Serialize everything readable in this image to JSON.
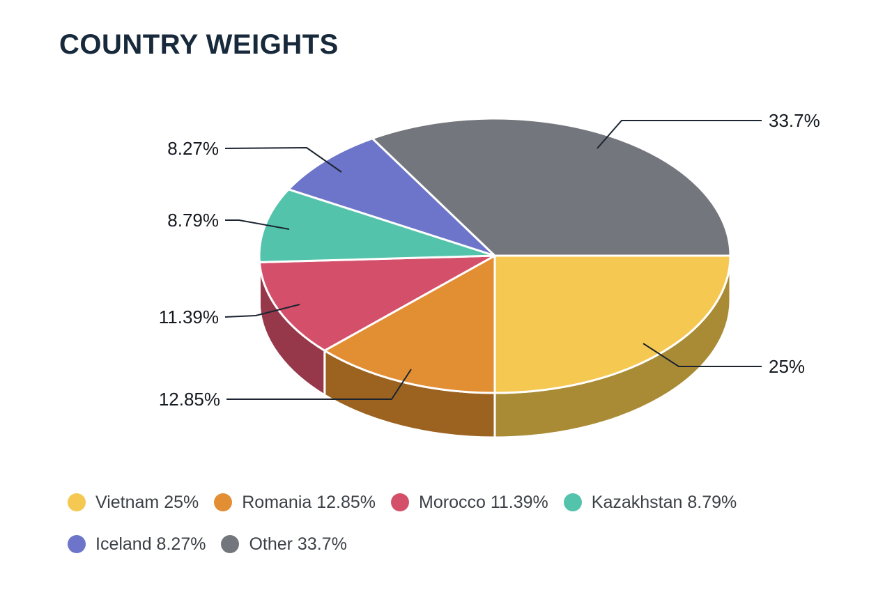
{
  "header": {
    "title": "COUNTRY WEIGHTS"
  },
  "chart_data": {
    "type": "pie",
    "style": "3d-pie",
    "title": "COUNTRY WEIGHTS",
    "unit": "%",
    "total": 100,
    "slices": [
      {
        "label": "Vietnam",
        "value": 25,
        "display": "25%",
        "color": "#F5C851",
        "side_color": "#A98B36"
      },
      {
        "label": "Romania",
        "value": 12.85,
        "display": "12.85%",
        "color": "#E28E33",
        "side_color": "#9C6320"
      },
      {
        "label": "Morocco",
        "value": 11.39,
        "display": "11.39%",
        "color": "#D4506A",
        "side_color": "#96384A"
      },
      {
        "label": "Kazakhstan",
        "value": 8.79,
        "display": "8.79%",
        "color": "#53C3AB",
        "side_color": "#3A8E7C"
      },
      {
        "label": "Iceland",
        "value": 8.27,
        "display": "8.27%",
        "color": "#6C75C9",
        "side_color": "#4C5494"
      },
      {
        "label": "Other",
        "value": 33.7,
        "display": "33.7%",
        "color": "#73767C",
        "side_color": "#53565B"
      }
    ],
    "legend_position": "bottom-left",
    "colors": {
      "background": "#FFFFFF",
      "title_text": "#17293B",
      "label_text": "#14191F",
      "label_line": "#1B2430",
      "legend_text": "#3B4046",
      "slice_border": "#FFFFFF"
    }
  },
  "legend": {
    "items": [
      {
        "label": "Vietnam 25%"
      },
      {
        "label": "Romania 12.85%"
      },
      {
        "label": "Morocco 11.39%"
      },
      {
        "label": "Kazakhstan 8.79%"
      },
      {
        "label": "Iceland 8.27%"
      },
      {
        "label": "Other 33.7%"
      }
    ]
  }
}
